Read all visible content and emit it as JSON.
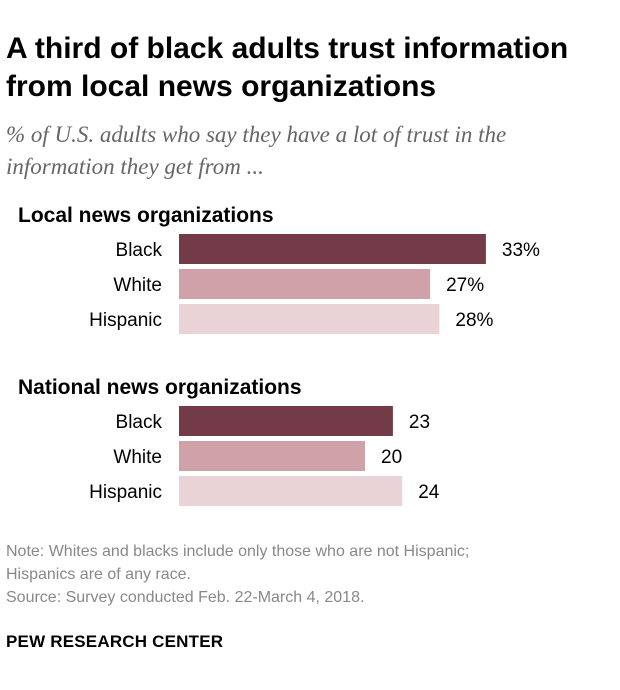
{
  "title": "A third of black adults trust information from local news organizations",
  "subtitle": "% of U.S. adults who say they have a lot of trust in the information they get from ...",
  "colors": {
    "Black": "#733a47",
    "White": "#cfa2a9",
    "Hispanic": "#e9d3d6"
  },
  "chart_data": [
    {
      "type": "bar",
      "orientation": "horizontal",
      "title": "Local news organizations",
      "categories": [
        "Black",
        "White",
        "Hispanic"
      ],
      "values": [
        33,
        27,
        28
      ],
      "value_labels": [
        "33%",
        "27%",
        "28%"
      ]
    },
    {
      "type": "bar",
      "orientation": "horizontal",
      "title": "National news organizations",
      "categories": [
        "Black",
        "White",
        "Hispanic"
      ],
      "values": [
        23,
        20,
        24
      ],
      "value_labels": [
        "23",
        "20",
        "24"
      ]
    }
  ],
  "notes": [
    "Note: Whites and blacks include only those who are not Hispanic;",
    "Hispanics are of any race.",
    "Source: Survey conducted Feb. 22-March 4, 2018."
  ],
  "brand": "PEW RESEARCH CENTER"
}
